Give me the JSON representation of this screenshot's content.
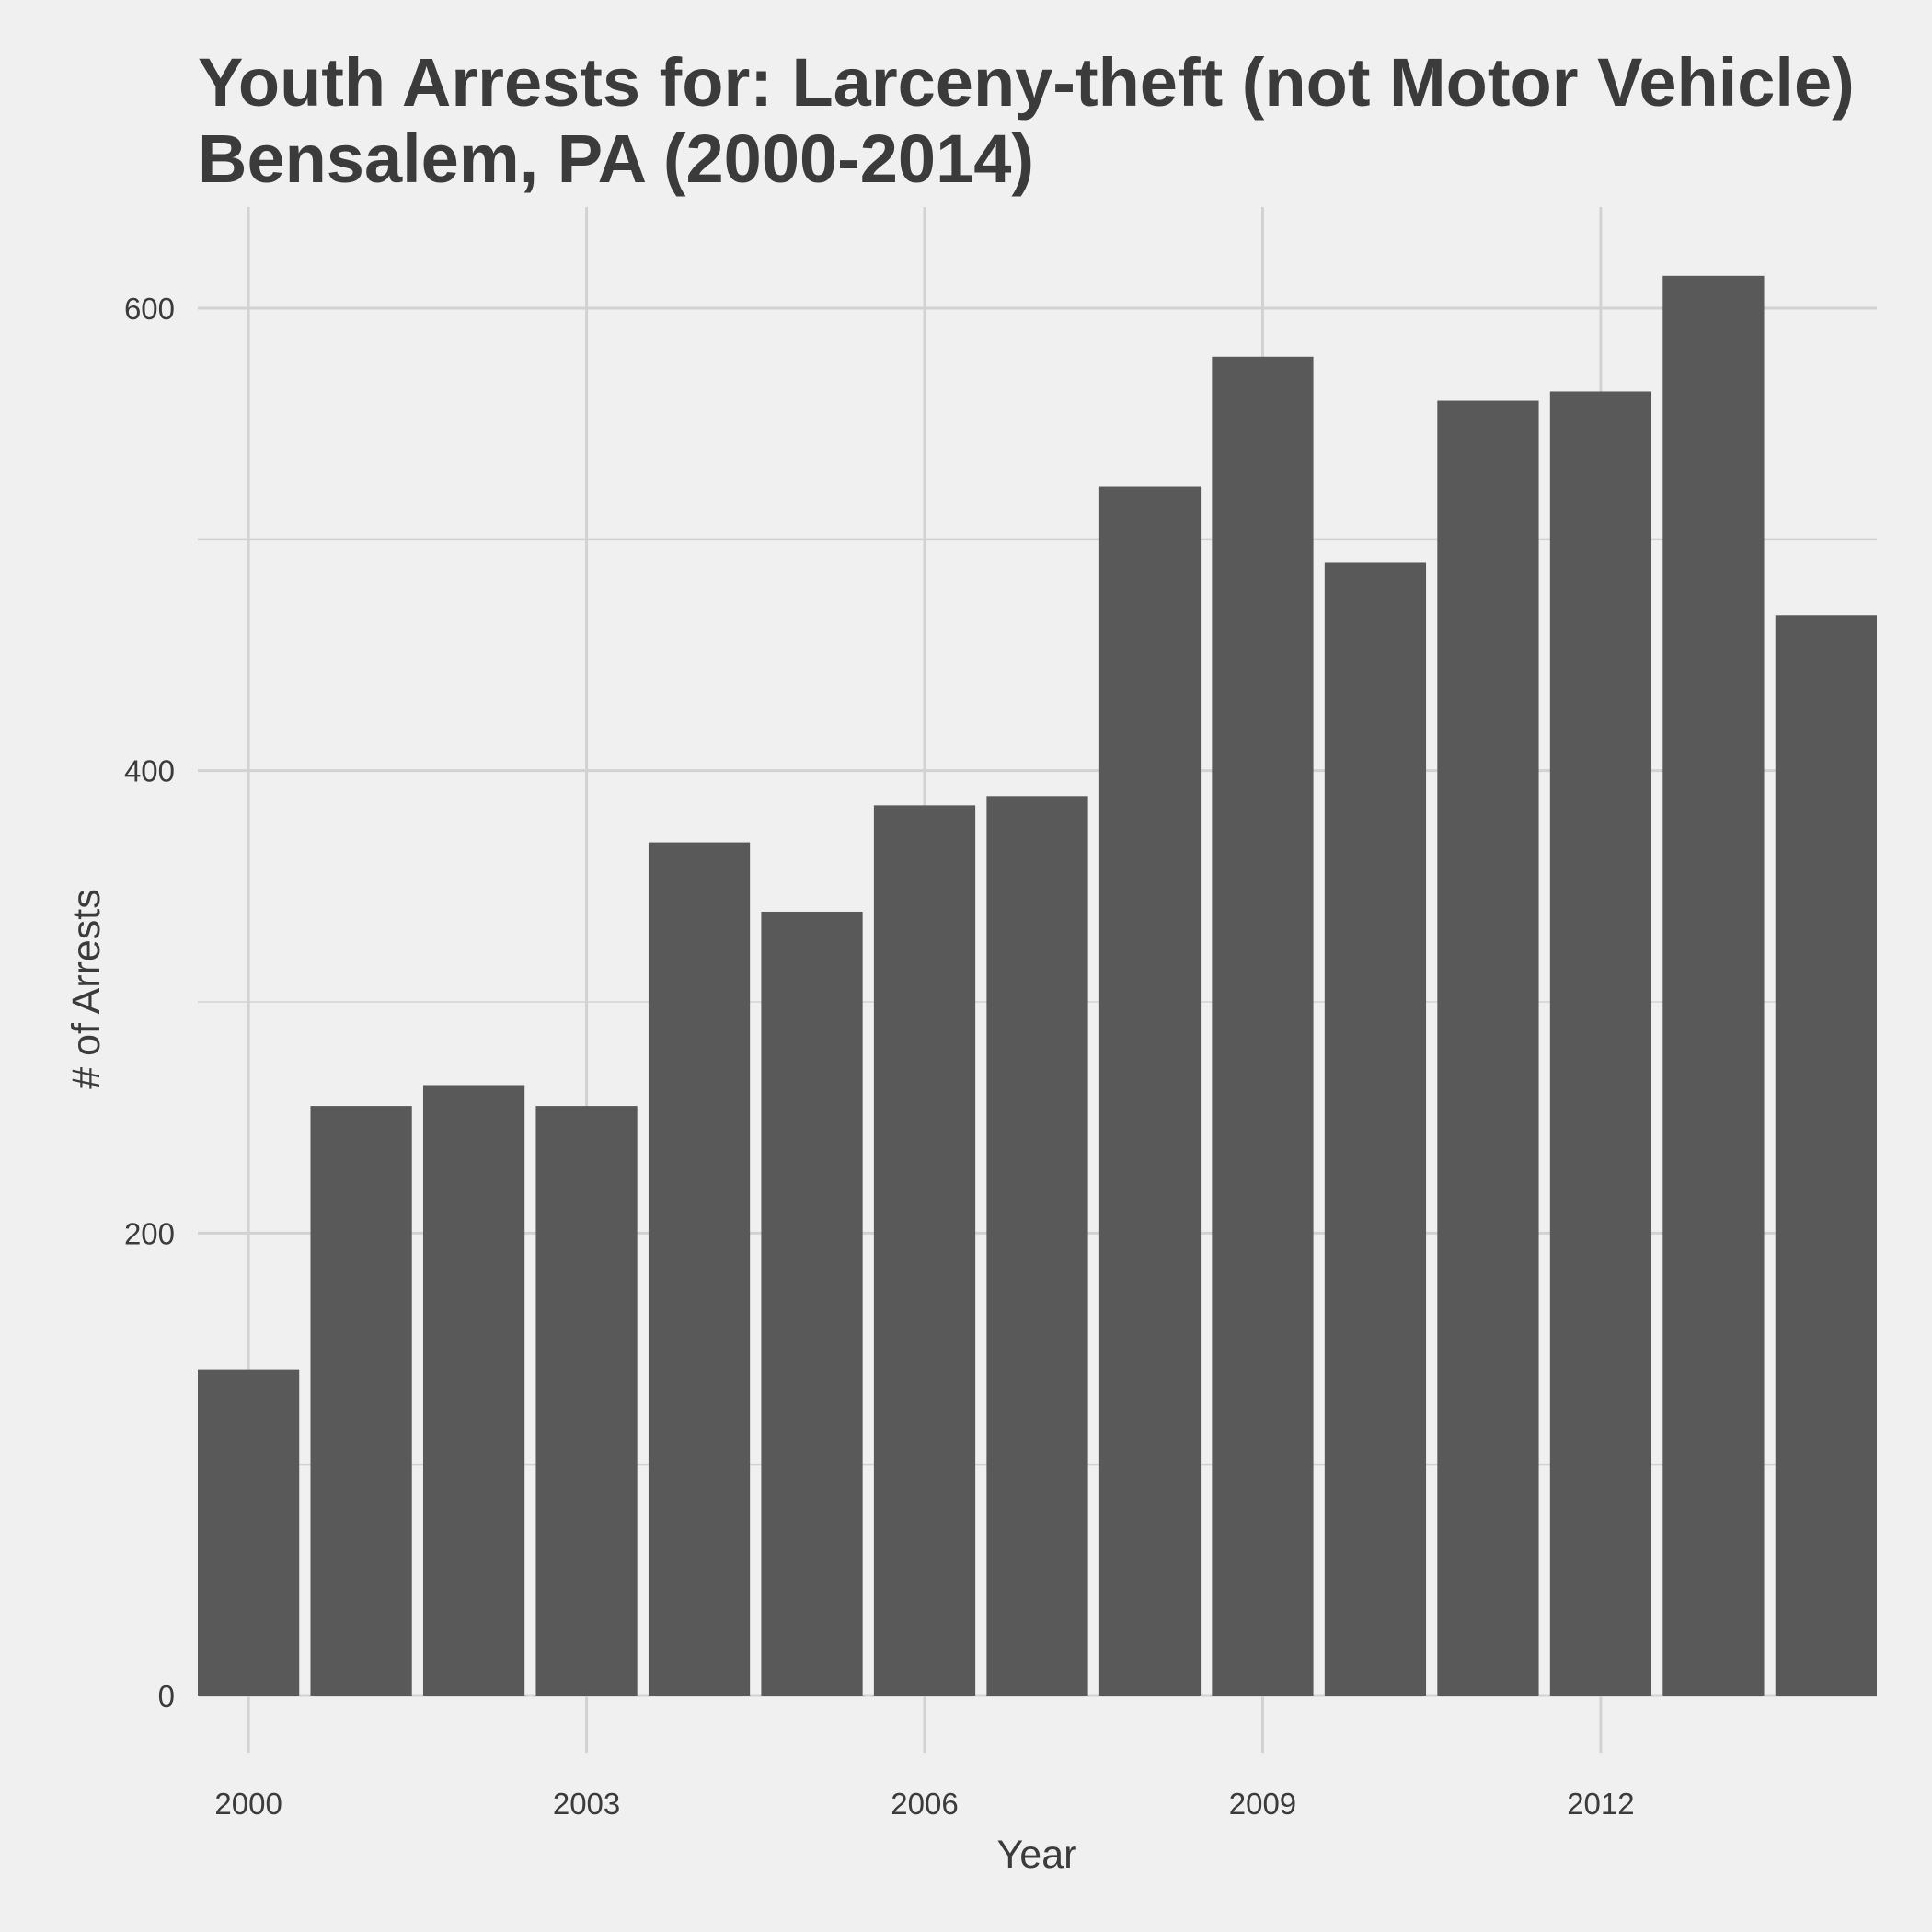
{
  "chart_data": {
    "type": "bar",
    "title_line1": "Youth Arrests for: Larceny-theft (not Motor Vehicle)",
    "title_line2": "Bensalem, PA (2000-2014)",
    "xlabel": "Year",
    "ylabel": "# of Arrests",
    "x": [
      2000,
      2001,
      2002,
      2003,
      2004,
      2005,
      2006,
      2007,
      2008,
      2009,
      2010,
      2011,
      2012,
      2013,
      2014
    ],
    "values": [
      141,
      255,
      264,
      255,
      369,
      339,
      385,
      389,
      523,
      579,
      490,
      560,
      564,
      614,
      467
    ],
    "ylim": [
      0,
      640
    ],
    "yticks": [
      0,
      200,
      400,
      600
    ],
    "xticks": [
      2000,
      2003,
      2006,
      2009,
      2012
    ],
    "grid": true,
    "bar_color": "#595959",
    "grid_color": "#d2d2d2",
    "background_color": "#f0f0f0"
  }
}
